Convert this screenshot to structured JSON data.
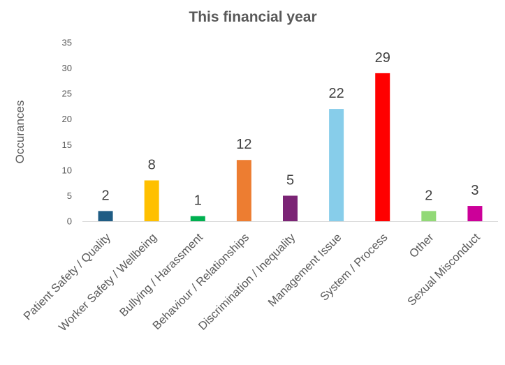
{
  "chart_data": {
    "type": "bar",
    "title": "This financial year",
    "xlabel": "",
    "ylabel": "Occurances",
    "ylim": [
      0,
      35
    ],
    "yticks": [
      0,
      5,
      10,
      15,
      20,
      25,
      30,
      35
    ],
    "grid": false,
    "legend": "none",
    "categories": [
      "Patient Safety / Quality",
      "Worker Safety / Wellbeing",
      "Bullying / Harassment",
      "Behaviour / Relationships",
      "Discrimination / Inequality",
      "Management Issue",
      "System / Process",
      "Other",
      "Sexual Misconduct"
    ],
    "values": [
      2,
      8,
      1,
      12,
      5,
      22,
      29,
      2,
      3
    ],
    "colors": [
      "#1F5C84",
      "#FFC000",
      "#00B050",
      "#ED7D31",
      "#7B2475",
      "#87CDEA",
      "#FF0000",
      "#92D977",
      "#CC0099"
    ]
  }
}
